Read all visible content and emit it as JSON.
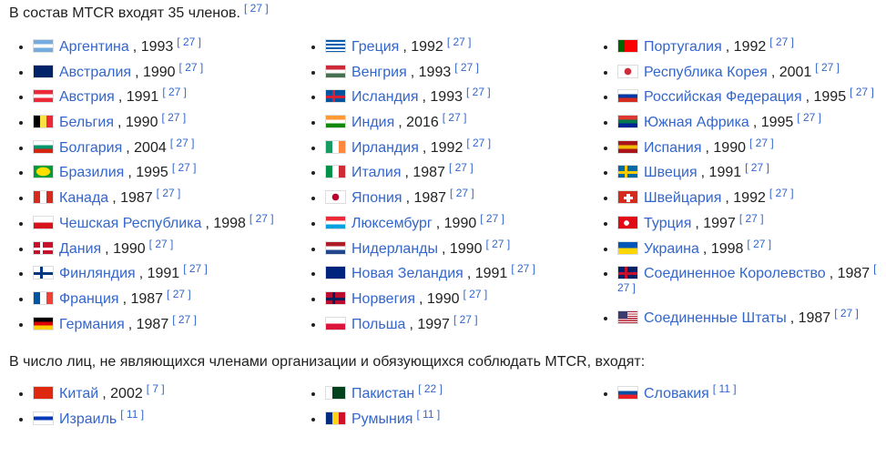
{
  "intro": {
    "text": "В состав MTCR входят 35 членов.",
    "ref": "[ 27 ]"
  },
  "members": [
    [
      {
        "name": "Аргентина",
        "detail": ", 1993",
        "ref": "[ 27 ]"
      },
      {
        "name": "Австралия",
        "detail": ", 1990",
        "ref": "[ 27 ]"
      },
      {
        "name": "Австрия",
        "detail": ", 1991",
        "ref": "[ 27 ]"
      },
      {
        "name": "Бельгия",
        "detail": ", 1990",
        "ref": "[ 27 ]"
      },
      {
        "name": "Болгария",
        "detail": ", 2004",
        "ref": "[ 27 ]"
      },
      {
        "name": "Бразилия",
        "detail": ", 1995",
        "ref": "[ 27 ]"
      },
      {
        "name": "Канада",
        "detail": ", 1987",
        "ref": "[ 27 ]"
      },
      {
        "name": "Чешская Республика",
        "detail": ", 1998",
        "ref": "[ 27 ]"
      },
      {
        "name": "Дания",
        "detail": ", 1990",
        "ref": "[ 27 ]"
      },
      {
        "name": "Финляндия",
        "detail": ", 1991",
        "ref": "[ 27 ]"
      },
      {
        "name": "Франция",
        "detail": ", 1987",
        "ref": "[ 27 ]"
      },
      {
        "name": "Германия",
        "detail": ", 1987",
        "ref": "[ 27 ]"
      }
    ],
    [
      {
        "name": "Греция",
        "detail": ", 1992",
        "ref": "[ 27 ]"
      },
      {
        "name": "Венгрия",
        "detail": ", 1993",
        "ref": "[ 27 ]"
      },
      {
        "name": "Исландия",
        "detail": ", 1993",
        "ref": "[ 27 ]"
      },
      {
        "name": "Индия",
        "detail": ", 2016",
        "ref": "[ 27 ]"
      },
      {
        "name": "Ирландия",
        "detail": ", 1992",
        "ref": "[ 27 ]"
      },
      {
        "name": "Италия",
        "detail": ", 1987",
        "ref": "[ 27 ]"
      },
      {
        "name": "Япония",
        "detail": ", 1987",
        "ref": "[ 27 ]"
      },
      {
        "name": "Люксембург",
        "detail": ", 1990",
        "ref": "[ 27 ]"
      },
      {
        "name": "Нидерланды",
        "detail": ", 1990",
        "ref": "[ 27 ]"
      },
      {
        "name": "Новая Зеландия",
        "detail": ", 1991",
        "ref": "[ 27 ]"
      },
      {
        "name": "Норвегия",
        "detail": ", 1990",
        "ref": "[ 27 ]"
      },
      {
        "name": "Польша",
        "detail": ", 1997",
        "ref": "[ 27 ]"
      }
    ],
    [
      {
        "name": "Португалия",
        "detail": ", 1992",
        "ref": "[ 27 ]"
      },
      {
        "name": "Республика Корея",
        "detail": ", 2001",
        "ref": "[ 27 ]"
      },
      {
        "name": "Российская Федерация",
        "detail": ", 1995",
        "ref": "[ 27 ]"
      },
      {
        "name": "Южная Африка",
        "detail": ", 1995",
        "ref": "[ 27 ]"
      },
      {
        "name": "Испания",
        "detail": ", 1990",
        "ref": "[ 27 ]"
      },
      {
        "name": "Швеция",
        "detail": ", 1991",
        "ref": "[ 27 ]"
      },
      {
        "name": "Швейцария",
        "detail": ", 1992",
        "ref": "[ 27 ]"
      },
      {
        "name": "Турция",
        "detail": ", 1997",
        "ref": "[ 27 ]"
      },
      {
        "name": "Украина",
        "detail": ", 1998",
        "ref": "[ 27 ]"
      },
      {
        "name": "Соединенное Королевство",
        "detail": ", 1987",
        "ref": "[ 27 ]"
      },
      {
        "name": "Соединенные Штаты",
        "detail": ", 1987",
        "ref": "[ 27 ]"
      }
    ]
  ],
  "non_members_intro": "В число лиц, не являющихся членами организации и обязующихся соблюдать MTCR, входят:",
  "non_members": [
    [
      {
        "name": "Китай",
        "detail": ", 2002",
        "ref": "[ 7 ]"
      },
      {
        "name": "Израиль",
        "ref": "[ 11 ]"
      }
    ],
    [
      {
        "name": "Пакистан",
        "ref": "[ 22 ]"
      },
      {
        "name": "Румыния",
        "ref": "[ 11 ]"
      }
    ],
    [
      {
        "name": "Словакия",
        "ref": "[ 11 ]"
      }
    ]
  ]
}
